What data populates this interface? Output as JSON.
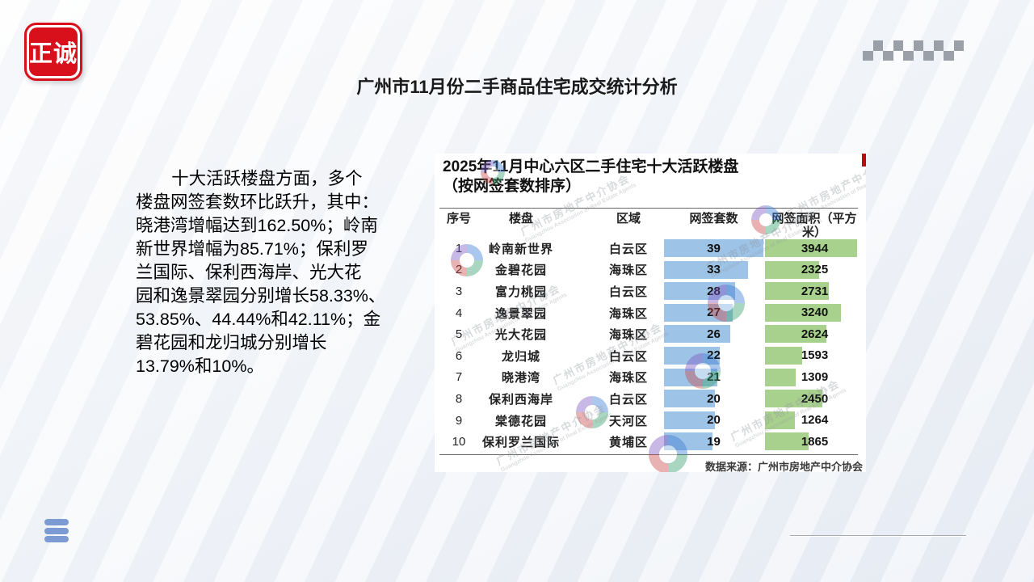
{
  "slide": {
    "logo": {
      "text": "正诚"
    },
    "title": "广州市11月份二手商品住宅成交统计分析",
    "paragraph_lines": [
      "十大活跃楼盘方面，多个",
      "楼盘网签套数环比跃升，其中：",
      "晓港湾增幅达到162.50%；岭南",
      "新世界增幅为85.71%；保利罗",
      "兰国际、保利西海岸、光大花",
      "园和逸景翠园分别增长58.33%、",
      "53.85%、44.44%和42.11%；金",
      "碧花园和龙归城分别增长",
      "13.79%和10%。"
    ]
  },
  "chart_data": {
    "type": "table",
    "title": "2025年11月中心六区二手住宅十大活跃楼盘",
    "subtitle": "（按网签套数排序）",
    "columns": [
      "序号",
      "楼盘",
      "区域",
      "网签套数",
      "网签面积（平方米）"
    ],
    "rows": [
      {
        "rank": "1",
        "name": "岭南新世界",
        "district": "白云区",
        "units": 39,
        "area": 3944
      },
      {
        "rank": "2",
        "name": "金碧花园",
        "district": "海珠区",
        "units": 33,
        "area": 2325
      },
      {
        "rank": "3",
        "name": "富力桃园",
        "district": "白云区",
        "units": 28,
        "area": 2731
      },
      {
        "rank": "4",
        "name": "逸景翠园",
        "district": "海珠区",
        "units": 27,
        "area": 3240
      },
      {
        "rank": "5",
        "name": "光大花园",
        "district": "海珠区",
        "units": 26,
        "area": 2624
      },
      {
        "rank": "6",
        "name": "龙归城",
        "district": "白云区",
        "units": 22,
        "area": 1593
      },
      {
        "rank": "7",
        "name": "晓港湾",
        "district": "海珠区",
        "units": 21,
        "area": 1309
      },
      {
        "rank": "8",
        "name": "保利西海岸",
        "district": "白云区",
        "units": 20,
        "area": 2450
      },
      {
        "rank": "9",
        "name": "棠德花园",
        "district": "天河区",
        "units": 20,
        "area": 1264
      },
      {
        "rank": "10",
        "name": "保利罗兰国际",
        "district": "黄埔区",
        "units": 19,
        "area": 1865
      }
    ],
    "units_axis_max": 39,
    "area_axis_max": 4244,
    "bar_colors": {
      "units": "#9DC3E6",
      "area": "#A9D18E"
    },
    "source": "数据来源：广州市房地产中介协会"
  },
  "watermark": {
    "cn": "广州市房地产中介协会",
    "en": "Guangzhou Association of Real Estate Agents"
  }
}
